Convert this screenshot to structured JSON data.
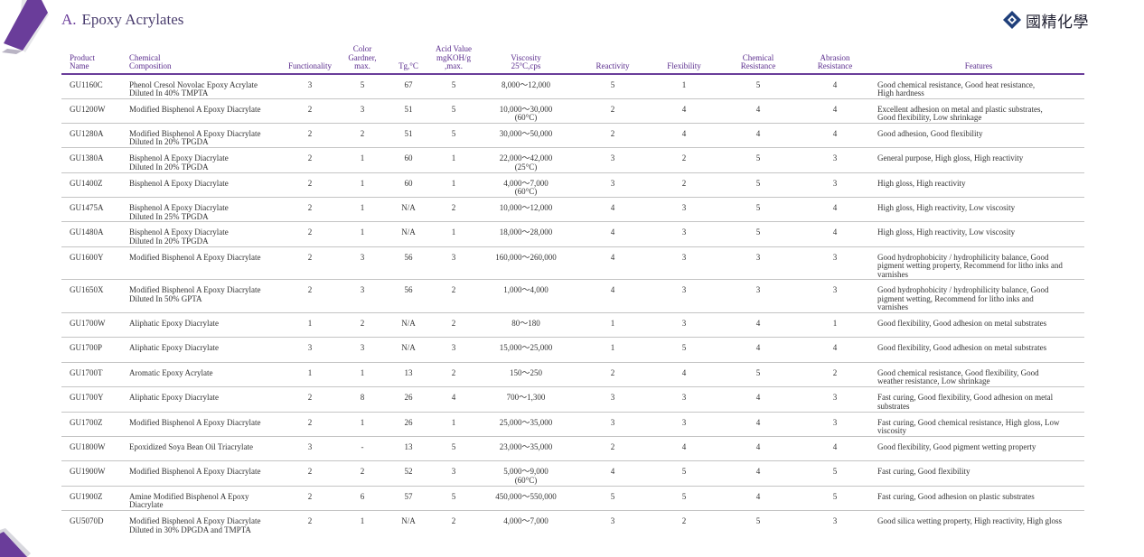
{
  "section": {
    "letter": "A.",
    "title": "Epoxy Acrylates"
  },
  "logo": {
    "text": "國精化學",
    "icon": "diamond-logo-icon",
    "color": "#1f3f7a"
  },
  "colors": {
    "accent": "#6a3d9a",
    "header_text": "#5b2d8e",
    "rule": "#c4c4c4"
  },
  "table": {
    "headers": {
      "product": [
        "Product",
        "Name"
      ],
      "composition": [
        "Chemical",
        "Composition"
      ],
      "functionality": [
        "Functionality"
      ],
      "color": [
        "Color",
        "Gardner,",
        "max."
      ],
      "tg": [
        "Tg,°C"
      ],
      "acid": [
        "Acid Value",
        "mgKOH/g",
        ",max."
      ],
      "viscosity": [
        "Viscosity",
        "25°C,cps"
      ],
      "reactivity": [
        "Reactivity"
      ],
      "flexibility": [
        "Flexibility"
      ],
      "chemical": [
        "Chemical",
        "Resistance"
      ],
      "abrasion": [
        "Abrasion",
        "Resistance"
      ],
      "features": [
        "Features"
      ]
    },
    "rows": [
      {
        "code": "GU1160C",
        "comp": [
          "Phenol Cresol Novolac Epoxy Acrylate",
          "Diluted In 40% TMPTA"
        ],
        "func": "3",
        "color": "5",
        "tg": "67",
        "acid": "5",
        "visc": [
          "8,000～12,000"
        ],
        "react": "5",
        "flex": "1",
        "chem": "5",
        "abr": "4",
        "feat": [
          "Good chemical resistance, Good heat resistance,",
          "High hardness"
        ]
      },
      {
        "code": "GU1200W",
        "comp": [
          "Modified Bisphenol A Epoxy Diacrylate"
        ],
        "func": "2",
        "color": "3",
        "tg": "51",
        "acid": "5",
        "visc": [
          "10,000～30,000",
          "(60°C)"
        ],
        "react": "2",
        "flex": "4",
        "chem": "4",
        "abr": "4",
        "feat": [
          "Excellent adhesion on metal and plastic substrates,",
          "Good flexibility, Low shrinkage"
        ]
      },
      {
        "code": "GU1280A",
        "comp": [
          "Modified Bisphenol A Epoxy Diacrylate",
          "Diluted In 20% TPGDA"
        ],
        "func": "2",
        "color": "2",
        "tg": "51",
        "acid": "5",
        "visc": [
          "30,000～50,000"
        ],
        "react": "2",
        "flex": "4",
        "chem": "4",
        "abr": "4",
        "feat": [
          "Good adhesion, Good flexibility"
        ]
      },
      {
        "code": "GU1380A",
        "comp": [
          "Bisphenol A Epoxy Diacrylate",
          "Diluted In 20% TPGDA"
        ],
        "func": "2",
        "color": "1",
        "tg": "60",
        "acid": "1",
        "visc": [
          "22,000～42,000",
          "(25°C)"
        ],
        "react": "3",
        "flex": "2",
        "chem": "5",
        "abr": "3",
        "feat": [
          "General purpose, High gloss, High reactivity"
        ]
      },
      {
        "code": "GU1400Z",
        "comp": [
          "Bisphenol A Epoxy Diacrylate"
        ],
        "func": "2",
        "color": "1",
        "tg": "60",
        "acid": "1",
        "visc": [
          "4,000～7,000",
          "(60°C)"
        ],
        "react": "3",
        "flex": "2",
        "chem": "5",
        "abr": "3",
        "feat": [
          "High gloss, High reactivity"
        ]
      },
      {
        "code": "GU1475A",
        "comp": [
          "Bisphenol A Epoxy Diacrylate",
          "Diluted In 25% TPGDA"
        ],
        "func": "2",
        "color": "1",
        "tg": "N/A",
        "acid": "2",
        "visc": [
          "10,000～12,000"
        ],
        "react": "4",
        "flex": "3",
        "chem": "5",
        "abr": "4",
        "feat": [
          "High gloss, High reactivity, Low viscosity"
        ]
      },
      {
        "code": "GU1480A",
        "comp": [
          "Bisphenol A Epoxy Diacrylate",
          "Diluted In 20% TPGDA"
        ],
        "func": "2",
        "color": "1",
        "tg": "N/A",
        "acid": "1",
        "visc": [
          "18,000～28,000"
        ],
        "react": "4",
        "flex": "3",
        "chem": "5",
        "abr": "4",
        "feat": [
          "High gloss, High reactivity, Low viscosity"
        ]
      },
      {
        "code": "GU1600Y",
        "comp": [
          "Modified Bisphenol A Epoxy Diacrylate"
        ],
        "func": "2",
        "color": "3",
        "tg": "56",
        "acid": "3",
        "visc": [
          "160,000～260,000"
        ],
        "react": "4",
        "flex": "3",
        "chem": "3",
        "abr": "3",
        "feat": [
          "Good hydrophobicity / hydrophilicity balance, Good",
          "pigment wetting property, Recommend for litho inks and",
          "varnishes"
        ],
        "tall": true
      },
      {
        "code": "GU1650X",
        "comp": [
          "Modified Bisphenol A Epoxy Diacrylate",
          "Diluted In 50% GPTA"
        ],
        "func": "2",
        "color": "3",
        "tg": "56",
        "acid": "2",
        "visc": [
          "1,000～4,000"
        ],
        "react": "4",
        "flex": "3",
        "chem": "3",
        "abr": "3",
        "feat": [
          "Good hydrophobicity / hydrophilicity balance, Good",
          "pigment wetting, Recommend for litho inks and",
          "varnishes"
        ],
        "tall": true
      },
      {
        "code": "GU1700W",
        "comp": [
          "Aliphatic Epoxy Diacrylate"
        ],
        "func": "1",
        "color": "2",
        "tg": "N/A",
        "acid": "2",
        "visc": [
          "80～180"
        ],
        "react": "1",
        "flex": "3",
        "chem": "4",
        "abr": "1",
        "feat": [
          "Good flexibility, Good adhesion on metal substrates"
        ]
      },
      {
        "code": "GU1700P",
        "comp": [
          "Aliphatic Epoxy Diacrylate"
        ],
        "func": "3",
        "color": "3",
        "tg": "N/A",
        "acid": "3",
        "visc": [
          "15,000～25,000"
        ],
        "react": "1",
        "flex": "5",
        "chem": "4",
        "abr": "4",
        "feat": [
          "Good flexibility, Good adhesion on metal substrates"
        ]
      },
      {
        "code": "GU1700T",
        "comp": [
          "Aromatic Epoxy Acrylate"
        ],
        "func": "1",
        "color": "1",
        "tg": "13",
        "acid": "2",
        "visc": [
          "150～250"
        ],
        "react": "2",
        "flex": "4",
        "chem": "5",
        "abr": "2",
        "feat": [
          "Good chemical resistance, Good flexibility, Good",
          "weather resistance,  Low shrinkage"
        ]
      },
      {
        "code": "GU1700Y",
        "comp": [
          "Aliphatic  Epoxy Diacrylate"
        ],
        "func": "2",
        "color": "8",
        "tg": "26",
        "acid": "4",
        "visc": [
          "700～1,300"
        ],
        "react": "3",
        "flex": "3",
        "chem": "4",
        "abr": "3",
        "feat": [
          "Fast curing, Good flexibility, Good adhesion on metal",
          "substrates"
        ]
      },
      {
        "code": "GU1700Z",
        "comp": [
          "Modified Bisphenol A Epoxy Diacrylate"
        ],
        "func": "2",
        "color": "1",
        "tg": "26",
        "acid": "1",
        "visc": [
          "25,000～35,000"
        ],
        "react": "3",
        "flex": "3",
        "chem": "4",
        "abr": "3",
        "feat": [
          "Fast curing, Good chemical resistance, High gloss, Low",
          "viscosity"
        ]
      },
      {
        "code": "GU1800W",
        "comp": [
          "Epoxidized Soya Bean Oil Triacrylate"
        ],
        "func": "3",
        "color": "-",
        "tg": "13",
        "acid": "5",
        "visc": [
          "23,000～35,000"
        ],
        "react": "2",
        "flex": "4",
        "chem": "4",
        "abr": "4",
        "feat": [
          "Good flexibility, Good pigment wetting property"
        ]
      },
      {
        "code": "GU1900W",
        "comp": [
          "Modified Bisphenol A Epoxy Diacrylate"
        ],
        "func": "2",
        "color": "2",
        "tg": "52",
        "acid": "3",
        "visc": [
          "5,000～9,000",
          "(60°C)"
        ],
        "react": "4",
        "flex": "5",
        "chem": "4",
        "abr": "5",
        "feat": [
          "Fast curing, Good flexibility"
        ]
      },
      {
        "code": "GU1900Z",
        "comp": [
          "Amine Modified Bisphenol A Epoxy",
          "Diacrylate"
        ],
        "func": "2",
        "color": "6",
        "tg": "57",
        "acid": "5",
        "visc": [
          "450,000～550,000"
        ],
        "react": "5",
        "flex": "5",
        "chem": "4",
        "abr": "5",
        "feat": [
          "Fast curing, Good adhesion on plastic substrates"
        ]
      },
      {
        "code": "GU5070D",
        "comp": [
          "Modified Bisphenol A Epoxy Diacrylate",
          "Diluted in 30% DPGDA and TMPTA"
        ],
        "func": "2",
        "color": "1",
        "tg": "N/A",
        "acid": "2",
        "visc": [
          "4,000～7,000"
        ],
        "react": "3",
        "flex": "2",
        "chem": "5",
        "abr": "3",
        "feat": [
          "Good silica wetting property, High reactivity, High gloss"
        ]
      }
    ]
  }
}
